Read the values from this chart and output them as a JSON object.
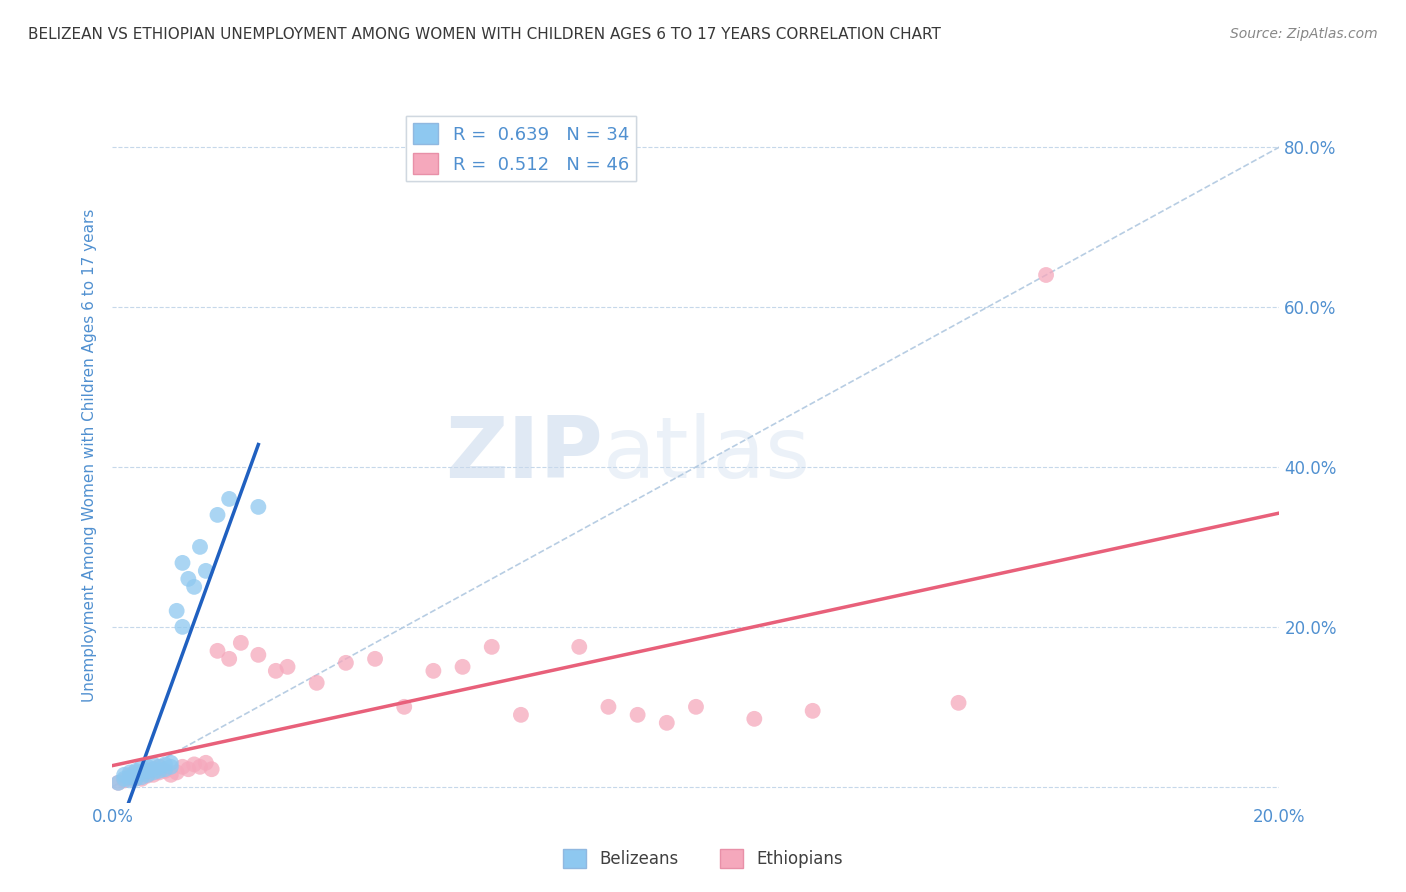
{
  "title": "BELIZEAN VS ETHIOPIAN UNEMPLOYMENT AMONG WOMEN WITH CHILDREN AGES 6 TO 17 YEARS CORRELATION CHART",
  "source": "Source: ZipAtlas.com",
  "ylabel": "Unemployment Among Women with Children Ages 6 to 17 years",
  "xlim": [
    0.0,
    0.2
  ],
  "ylim": [
    -0.02,
    0.85
  ],
  "xticks": [
    0.0,
    0.05,
    0.1,
    0.15,
    0.2
  ],
  "xticklabels": [
    "0.0%",
    "",
    "",
    "",
    "20.0%"
  ],
  "yticks": [
    0.0,
    0.2,
    0.4,
    0.6,
    0.8
  ],
  "yticklabels": [
    "",
    "20.0%",
    "40.0%",
    "60.0%",
    "80.0%"
  ],
  "belizean_R": "0.639",
  "belizean_N": "34",
  "ethiopian_R": "0.512",
  "ethiopian_N": "46",
  "belizean_color": "#8EC8F0",
  "ethiopian_color": "#F5A8BC",
  "belizean_line_color": "#2060C0",
  "ethiopian_line_color": "#E8607A",
  "reference_line_color": "#B0C8E0",
  "axis_label_color": "#5090D0",
  "title_color": "#383838",
  "source_color": "#888888",
  "background_color": "#FFFFFF",
  "watermark_zip": "ZIP",
  "watermark_atlas": "atlas",
  "belizean_x": [
    0.001,
    0.002,
    0.002,
    0.003,
    0.003,
    0.003,
    0.004,
    0.004,
    0.004,
    0.005,
    0.005,
    0.005,
    0.006,
    0.006,
    0.006,
    0.007,
    0.007,
    0.007,
    0.008,
    0.008,
    0.009,
    0.009,
    0.01,
    0.01,
    0.011,
    0.012,
    0.012,
    0.013,
    0.014,
    0.015,
    0.016,
    0.018,
    0.02,
    0.025
  ],
  "belizean_y": [
    0.005,
    0.01,
    0.015,
    0.008,
    0.012,
    0.018,
    0.01,
    0.015,
    0.02,
    0.012,
    0.018,
    0.025,
    0.015,
    0.02,
    0.025,
    0.018,
    0.022,
    0.028,
    0.02,
    0.025,
    0.022,
    0.028,
    0.025,
    0.03,
    0.22,
    0.2,
    0.28,
    0.26,
    0.25,
    0.3,
    0.27,
    0.34,
    0.36,
    0.35
  ],
  "ethiopian_x": [
    0.001,
    0.002,
    0.003,
    0.003,
    0.004,
    0.004,
    0.005,
    0.005,
    0.006,
    0.006,
    0.007,
    0.007,
    0.008,
    0.008,
    0.009,
    0.01,
    0.011,
    0.012,
    0.013,
    0.014,
    0.015,
    0.016,
    0.017,
    0.018,
    0.02,
    0.022,
    0.025,
    0.028,
    0.03,
    0.035,
    0.04,
    0.045,
    0.05,
    0.055,
    0.06,
    0.065,
    0.07,
    0.08,
    0.085,
    0.09,
    0.095,
    0.1,
    0.11,
    0.12,
    0.145,
    0.16
  ],
  "ethiopian_y": [
    0.005,
    0.008,
    0.01,
    0.015,
    0.012,
    0.018,
    0.01,
    0.016,
    0.014,
    0.02,
    0.015,
    0.022,
    0.018,
    0.025,
    0.02,
    0.015,
    0.018,
    0.025,
    0.022,
    0.028,
    0.025,
    0.03,
    0.022,
    0.17,
    0.16,
    0.18,
    0.165,
    0.145,
    0.15,
    0.13,
    0.155,
    0.16,
    0.1,
    0.145,
    0.15,
    0.175,
    0.09,
    0.175,
    0.1,
    0.09,
    0.08,
    0.1,
    0.085,
    0.095,
    0.105,
    0.64
  ]
}
